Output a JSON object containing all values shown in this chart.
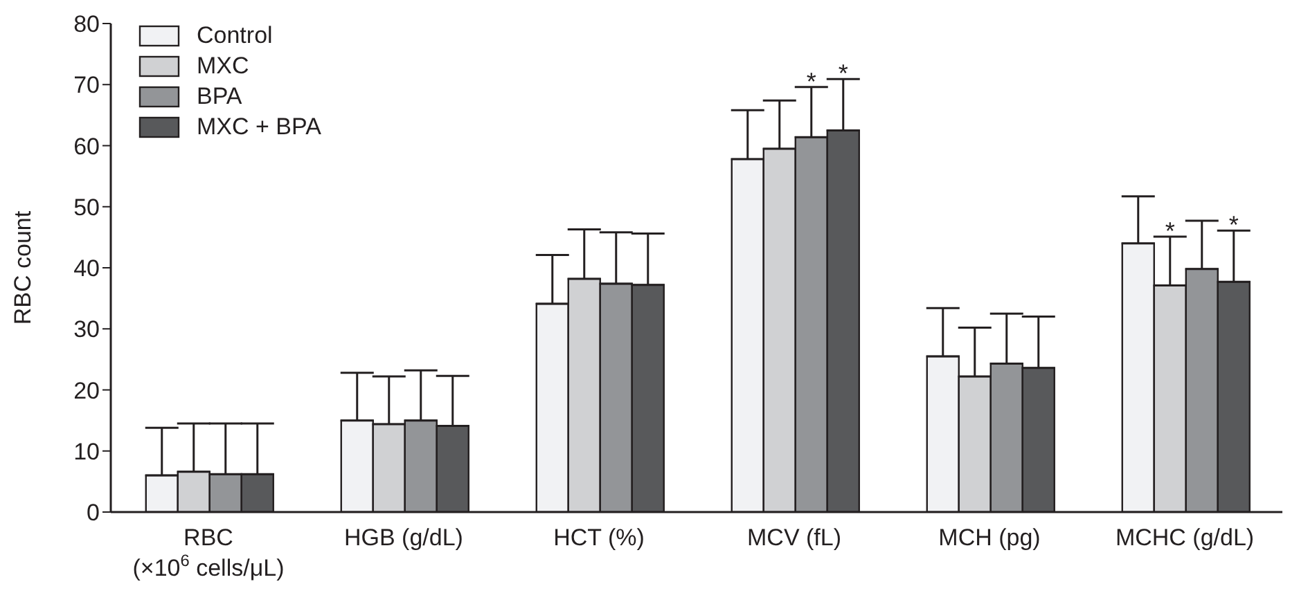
{
  "chart_data": {
    "type": "bar",
    "ylabel": "RBC count",
    "categories": [
      "RBC\n(×10$^{6}$ cells/μL)",
      "HGB (g/dL)",
      "HCT (%)",
      "MCV (fL)",
      "MCH (pg)",
      "MCHC (g/dL)"
    ],
    "series": [
      {
        "name": "Control",
        "color": "#f1f2f4",
        "values": [
          6.0,
          15.0,
          34.1,
          57.8,
          25.5,
          44.0
        ],
        "errors": [
          [
            6.0,
            13.8
          ],
          [
            15.0,
            22.8
          ],
          [
            34.1,
            42.1
          ],
          [
            57.8,
            65.8
          ],
          [
            25.5,
            33.4
          ],
          [
            44.0,
            51.7
          ]
        ]
      },
      {
        "name": "MXC",
        "color": "#d0d1d3",
        "values": [
          6.6,
          14.4,
          38.2,
          59.5,
          22.2,
          37.1
        ],
        "errors": [
          [
            6.6,
            14.5
          ],
          [
            14.4,
            22.2
          ],
          [
            38.2,
            46.3
          ],
          [
            59.5,
            67.4
          ],
          [
            22.2,
            30.2
          ],
          [
            37.1,
            45.1
          ]
        ]
      },
      {
        "name": "BPA",
        "color": "#939598",
        "values": [
          6.2,
          15.0,
          37.4,
          61.4,
          24.3,
          39.8
        ],
        "errors": [
          [
            6.2,
            14.5
          ],
          [
            15.0,
            23.2
          ],
          [
            37.4,
            45.8
          ],
          [
            61.4,
            69.6
          ],
          [
            24.3,
            32.5
          ],
          [
            39.8,
            47.7
          ]
        ]
      },
      {
        "name": "MXC + BPA",
        "color": "#58595b",
        "values": [
          6.2,
          14.1,
          37.2,
          62.5,
          23.6,
          37.7
        ],
        "errors": [
          [
            6.2,
            14.5
          ],
          [
            14.1,
            22.3
          ],
          [
            37.2,
            45.6
          ],
          [
            62.5,
            70.9
          ],
          [
            23.6,
            32.0
          ],
          [
            37.7,
            46.1
          ]
        ]
      }
    ],
    "ylim": [
      0,
      80
    ],
    "yticks": [
      0,
      10,
      20,
      30,
      40,
      50,
      60,
      70,
      80
    ],
    "annotations": [
      {
        "text": "*",
        "x": "MCV (fL)",
        "y": 61.4
      },
      {
        "text": "*",
        "x": "MCV (fL)",
        "y": 62.5
      },
      {
        "text": "*",
        "x": "MCHC (g/dL)",
        "y": 37.1
      },
      {
        "text": "*",
        "x": "MCHC (g/dL)",
        "y": 37.7
      }
    ],
    "grid": false,
    "legend": "top left"
  }
}
